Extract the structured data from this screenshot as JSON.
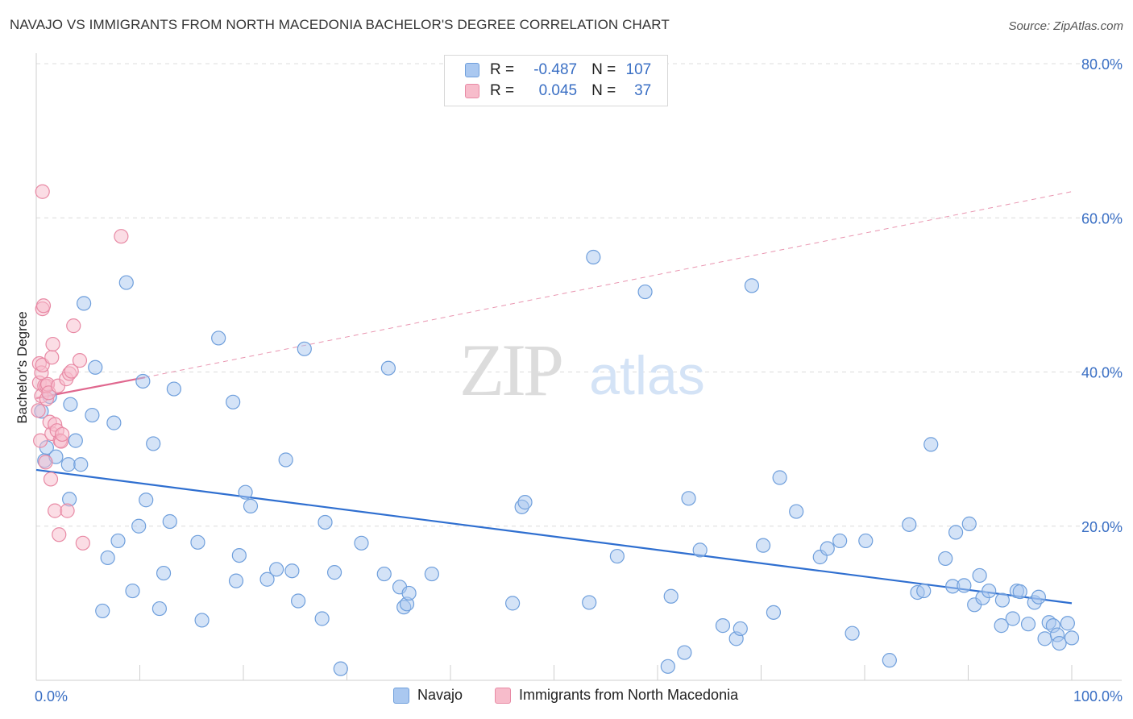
{
  "title": "NAVAJO VS IMMIGRANTS FROM NORTH MACEDONIA BACHELOR'S DEGREE CORRELATION CHART",
  "source": "Source: ZipAtlas.com",
  "watermark": {
    "zip": "ZIP",
    "atlas": "atlas"
  },
  "legend": {
    "r_label": "R =",
    "n_label": "N =",
    "rows": [
      {
        "r": "-0.487",
        "n": "107",
        "color": "#aac8f0",
        "border": "#6f9fdc"
      },
      {
        "r": "0.045",
        "n": "37",
        "color": "#f7bccb",
        "border": "#e88aa5"
      }
    ]
  },
  "bottom_legend": [
    {
      "label": "Navajo",
      "color": "#aac8f0",
      "border": "#6f9fdc"
    },
    {
      "label": "Immigrants from North Macedonia",
      "color": "#f7bccb",
      "border": "#e88aa5"
    }
  ],
  "chart_data": {
    "type": "scatter",
    "title": "NAVAJO VS IMMIGRANTS FROM NORTH MACEDONIA BACHELOR'S DEGREE CORRELATION CHART",
    "xlabel": "",
    "ylabel": "Bachelor's Degree",
    "xlim": [
      0,
      100
    ],
    "ylim": [
      0,
      80
    ],
    "x_tick_labels": [
      "0.0%",
      "100.0%"
    ],
    "y_ticks": [
      20,
      40,
      60,
      80
    ],
    "y_tick_labels": [
      "20.0%",
      "40.0%",
      "60.0%",
      "80.0%"
    ],
    "grid": true,
    "colors": {
      "navajo": "#6f9fdc",
      "navajo_fill": "#aac8f0",
      "navajo_line": "#2f6fd0",
      "macedonia": "#e88aa5",
      "macedonia_fill": "#f7bccb",
      "macedonia_line": "#e0688f",
      "axis_text": "#3a6fc4"
    },
    "series": [
      {
        "name": "Navajo",
        "trend": {
          "x0": 0,
          "y0": 27.3,
          "x1": 100,
          "y1": 10.0
        },
        "points": [
          [
            0.5,
            34.9
          ],
          [
            0.8,
            28.5
          ],
          [
            1.0,
            30.2
          ],
          [
            1.3,
            36.8
          ],
          [
            1.9,
            29.0
          ],
          [
            3.1,
            28.0
          ],
          [
            3.2,
            23.5
          ],
          [
            3.3,
            35.8
          ],
          [
            3.8,
            31.1
          ],
          [
            4.3,
            28.0
          ],
          [
            4.6,
            48.9
          ],
          [
            5.4,
            34.4
          ],
          [
            5.7,
            40.6
          ],
          [
            6.4,
            9.0
          ],
          [
            6.9,
            15.9
          ],
          [
            7.5,
            33.4
          ],
          [
            7.9,
            18.1
          ],
          [
            8.7,
            51.6
          ],
          [
            9.3,
            11.6
          ],
          [
            9.9,
            20.0
          ],
          [
            10.3,
            38.8
          ],
          [
            10.6,
            23.4
          ],
          [
            11.3,
            30.7
          ],
          [
            11.9,
            9.3
          ],
          [
            12.3,
            13.9
          ],
          [
            12.9,
            20.6
          ],
          [
            13.3,
            37.8
          ],
          [
            15.6,
            17.9
          ],
          [
            16.0,
            7.8
          ],
          [
            17.6,
            44.4
          ],
          [
            19.0,
            36.1
          ],
          [
            19.3,
            12.9
          ],
          [
            19.6,
            16.2
          ],
          [
            20.2,
            24.4
          ],
          [
            20.7,
            22.6
          ],
          [
            22.3,
            13.1
          ],
          [
            23.2,
            14.4
          ],
          [
            24.1,
            28.6
          ],
          [
            24.7,
            14.2
          ],
          [
            25.3,
            10.3
          ],
          [
            25.9,
            43.0
          ],
          [
            27.6,
            8.0
          ],
          [
            27.9,
            20.5
          ],
          [
            28.8,
            14.0
          ],
          [
            29.4,
            1.5
          ],
          [
            31.4,
            17.8
          ],
          [
            33.6,
            13.8
          ],
          [
            34.0,
            40.5
          ],
          [
            35.1,
            12.1
          ],
          [
            35.5,
            9.5
          ],
          [
            35.8,
            9.9
          ],
          [
            36.0,
            11.3
          ],
          [
            38.2,
            13.8
          ],
          [
            46.0,
            10.0
          ],
          [
            46.9,
            22.5
          ],
          [
            47.2,
            23.1
          ],
          [
            53.4,
            10.1
          ],
          [
            53.8,
            54.9
          ],
          [
            56.1,
            16.1
          ],
          [
            58.8,
            50.4
          ],
          [
            61.0,
            1.8
          ],
          [
            61.3,
            10.9
          ],
          [
            62.6,
            3.6
          ],
          [
            63.0,
            23.6
          ],
          [
            64.1,
            16.9
          ],
          [
            66.3,
            7.1
          ],
          [
            67.6,
            5.4
          ],
          [
            68.0,
            6.7
          ],
          [
            69.1,
            51.2
          ],
          [
            70.2,
            17.5
          ],
          [
            71.2,
            8.8
          ],
          [
            71.8,
            26.3
          ],
          [
            73.4,
            21.9
          ],
          [
            75.7,
            16.0
          ],
          [
            76.4,
            17.1
          ],
          [
            77.6,
            18.1
          ],
          [
            78.8,
            6.1
          ],
          [
            80.1,
            18.1
          ],
          [
            82.4,
            2.6
          ],
          [
            84.3,
            20.2
          ],
          [
            85.1,
            11.4
          ],
          [
            85.7,
            11.6
          ],
          [
            86.4,
            30.6
          ],
          [
            87.8,
            15.8
          ],
          [
            88.5,
            12.2
          ],
          [
            88.8,
            19.2
          ],
          [
            89.6,
            12.3
          ],
          [
            90.1,
            20.3
          ],
          [
            90.6,
            9.8
          ],
          [
            91.1,
            13.6
          ],
          [
            91.4,
            10.7
          ],
          [
            92.0,
            11.6
          ],
          [
            93.2,
            7.1
          ],
          [
            93.3,
            10.4
          ],
          [
            94.3,
            8.0
          ],
          [
            94.7,
            11.6
          ],
          [
            95.0,
            11.5
          ],
          [
            95.8,
            7.3
          ],
          [
            96.4,
            10.1
          ],
          [
            96.8,
            10.8
          ],
          [
            97.4,
            5.4
          ],
          [
            97.8,
            7.5
          ],
          [
            98.2,
            7.1
          ],
          [
            98.6,
            5.9
          ],
          [
            98.8,
            4.8
          ],
          [
            99.6,
            7.4
          ],
          [
            100.0,
            5.5
          ]
        ]
      },
      {
        "name": "Immigrants from North Macedonia",
        "trend": {
          "x0": 0,
          "y0": 36.6,
          "x1": 10.5,
          "y1": 39.3
        },
        "trend_extension": {
          "x0": 10.5,
          "y0": 39.3,
          "x1": 100,
          "y1": 63.4
        },
        "points": [
          [
            0.3,
            41.1
          ],
          [
            0.3,
            38.6
          ],
          [
            0.4,
            31.1
          ],
          [
            0.5,
            39.9
          ],
          [
            0.5,
            36.9
          ],
          [
            0.6,
            48.2
          ],
          [
            0.6,
            40.9
          ],
          [
            0.6,
            63.4
          ],
          [
            0.7,
            48.6
          ],
          [
            0.8,
            38.2
          ],
          [
            0.9,
            28.3
          ],
          [
            1.0,
            36.5
          ],
          [
            1.0,
            38.2
          ],
          [
            1.1,
            38.4
          ],
          [
            1.2,
            37.3
          ],
          [
            1.3,
            33.5
          ],
          [
            1.4,
            26.1
          ],
          [
            1.5,
            41.9
          ],
          [
            1.5,
            32.0
          ],
          [
            1.6,
            43.6
          ],
          [
            1.8,
            33.2
          ],
          [
            1.8,
            22.0
          ],
          [
            2.0,
            32.4
          ],
          [
            2.1,
            38.2
          ],
          [
            2.2,
            18.9
          ],
          [
            2.3,
            31.1
          ],
          [
            2.4,
            31.0
          ],
          [
            2.5,
            31.9
          ],
          [
            2.9,
            39.1
          ],
          [
            3.0,
            22.0
          ],
          [
            3.2,
            39.8
          ],
          [
            3.4,
            40.1
          ],
          [
            3.6,
            46.0
          ],
          [
            4.2,
            41.5
          ],
          [
            4.5,
            17.8
          ],
          [
            8.2,
            57.6
          ],
          [
            0.2,
            35.0
          ]
        ]
      }
    ]
  }
}
